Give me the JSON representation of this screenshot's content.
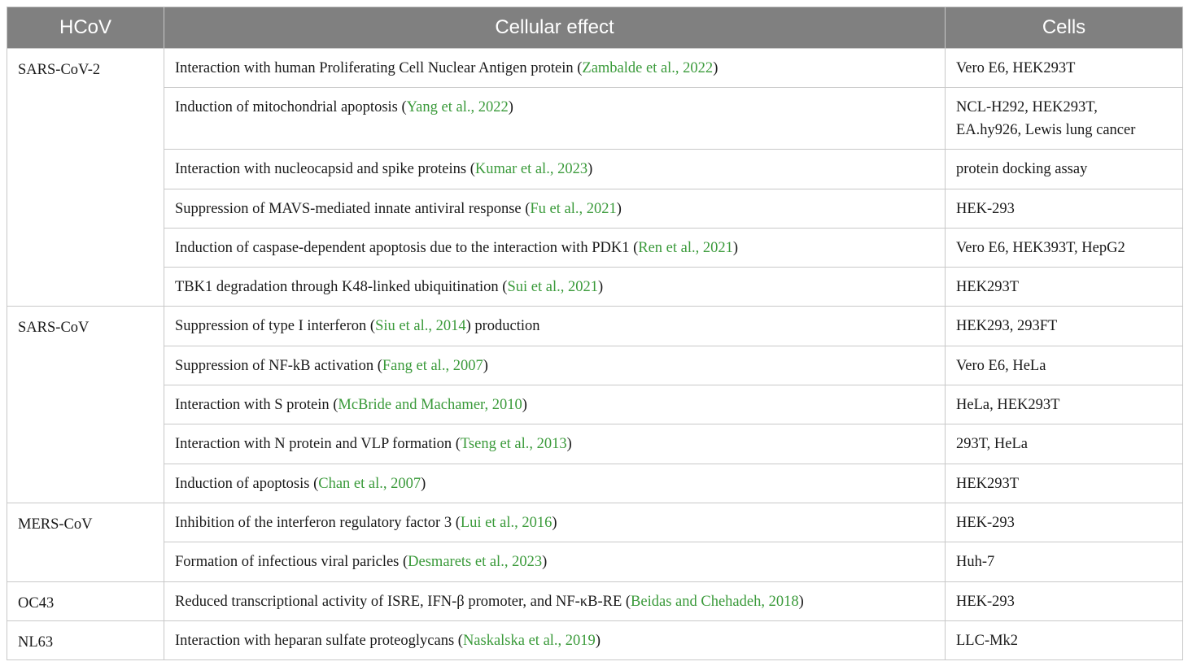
{
  "header": {
    "hcov": "HCoV",
    "effect": "Cellular effect",
    "cells": "Cells"
  },
  "groups": [
    {
      "hcov": "SARS-CoV-2",
      "rows": [
        {
          "pre": "Interaction with human Proliferating Cell Nuclear Antigen protein (",
          "cite": "Zambalde et al., 2022",
          "post": ")",
          "cells": "Vero E6, HEK293T"
        },
        {
          "pre": "Induction of mitochondrial apoptosis (",
          "cite": "Yang et al., 2022",
          "post": ")",
          "cells_line1": "NCL-H292, HEK293T,",
          "cells_line2": "EA.hy926, Lewis lung cancer"
        },
        {
          "pre": "Interaction with nucleocapsid and spike proteins (",
          "cite": "Kumar et al., 2023",
          "post": ")",
          "cells": "protein docking assay"
        },
        {
          "pre": "Suppression of MAVS-mediated innate antiviral response (",
          "cite": "Fu et al., 2021",
          "post": ")",
          "cells": "HEK-293"
        },
        {
          "pre": "Induction of caspase-dependent apoptosis due to the interaction with PDK1 (",
          "cite": "Ren et al., 2021",
          "post": ")",
          "cells": "Vero E6, HEK393T, HepG2"
        },
        {
          "pre": "TBK1 degradation through K48-linked ubiquitination (",
          "cite": "Sui et al., 2021",
          "post": ")",
          "cells": "HEK293T"
        }
      ]
    },
    {
      "hcov": "SARS-CoV",
      "rows": [
        {
          "pre": "Suppression of type I interferon (",
          "cite": "Siu et al., 2014",
          "post": ") production",
          "cells": "HEK293, 293FT"
        },
        {
          "pre": "Suppression of NF-kB activation (",
          "cite": "Fang et al., 2007",
          "post": ")",
          "cells": "Vero E6, HeLa"
        },
        {
          "pre": "Interaction with S protein (",
          "cite": "McBride and Machamer, 2010",
          "post": ")",
          "cells": "HeLa, HEK293T"
        },
        {
          "pre": "Interaction with N protein and VLP formation (",
          "cite": "Tseng et al., 2013",
          "post": ")",
          "cells": "293T, HeLa"
        },
        {
          "pre": "Induction of apoptosis (",
          "cite": "Chan et al., 2007",
          "post": ")",
          "cells": "HEK293T"
        }
      ]
    },
    {
      "hcov": "MERS-CoV",
      "rows": [
        {
          "pre": "Inhibition of the interferon regulatory factor 3 (",
          "cite": "Lui et al., 2016",
          "post": ")",
          "cells": "HEK-293"
        },
        {
          "pre": "Formation of infectious viral paricles (",
          "cite": "Desmarets et al., 2023",
          "post": ")",
          "cells": "Huh-7"
        }
      ]
    },
    {
      "hcov": "OC43",
      "rows": [
        {
          "pre": "Reduced transcriptional activity of ISRE, IFN-β promoter, and NF-κB-RE (",
          "cite": "Beidas and Chehadeh, 2018",
          "post": ")",
          "cells": "HEK-293"
        }
      ]
    },
    {
      "hcov": "NL63",
      "rows": [
        {
          "pre": "Interaction with heparan sulfate proteoglycans (",
          "cite": "Naskalska et al., 2019",
          "post": ")",
          "cells": "LLC-Mk2"
        }
      ]
    }
  ],
  "colors": {
    "header_bg": "#808080",
    "citation": "#3a9a3a",
    "border": "#c8c8c8"
  }
}
